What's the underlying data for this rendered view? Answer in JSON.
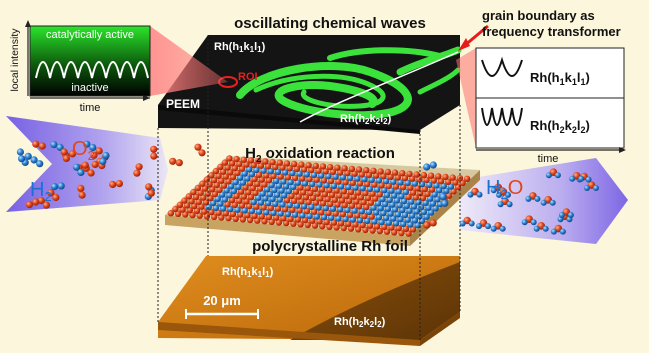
{
  "top_title": "oscillating chemical waves",
  "middle_title_prefix": "H",
  "middle_title_sub": "2",
  "middle_title_rest": " oxidation reaction",
  "bottom_title": "polycrystalline Rh foil",
  "scale_bar": "20 μm",
  "peem": "PEEM",
  "roi": "ROI",
  "inset_left": {
    "active": "catalytically active",
    "inactive": "inactive",
    "xlabel": "time",
    "ylabel": "local intensity"
  },
  "inset_right": {
    "title_line1": "grain boundary as",
    "title_line2": "frequency transformer",
    "xlabel": "time"
  },
  "rh1": {
    "base": "Rh(h",
    "s1": "1",
    "k": "k",
    "s2": "1",
    "l": "l",
    "s3": "1",
    "end": ")"
  },
  "rh2": {
    "base": "Rh(h",
    "s1": "2",
    "k": "k",
    "s2": "2",
    "l": "l",
    "s3": "2",
    "end": ")"
  },
  "o2": {
    "main": "O",
    "sub": "2"
  },
  "h2": {
    "main": "H",
    "sub": "2"
  },
  "h2o": {
    "main": "H",
    "sub": "2",
    "tail": "O"
  },
  "colors": {
    "background": "#fbf6dc",
    "wave_green": "#3be23b",
    "foil_orange": "#c8760c",
    "oxygen_red": "#d8401c",
    "hydrogen_blue": "#2c7fd0",
    "stream_purple": "#7b63e8"
  }
}
